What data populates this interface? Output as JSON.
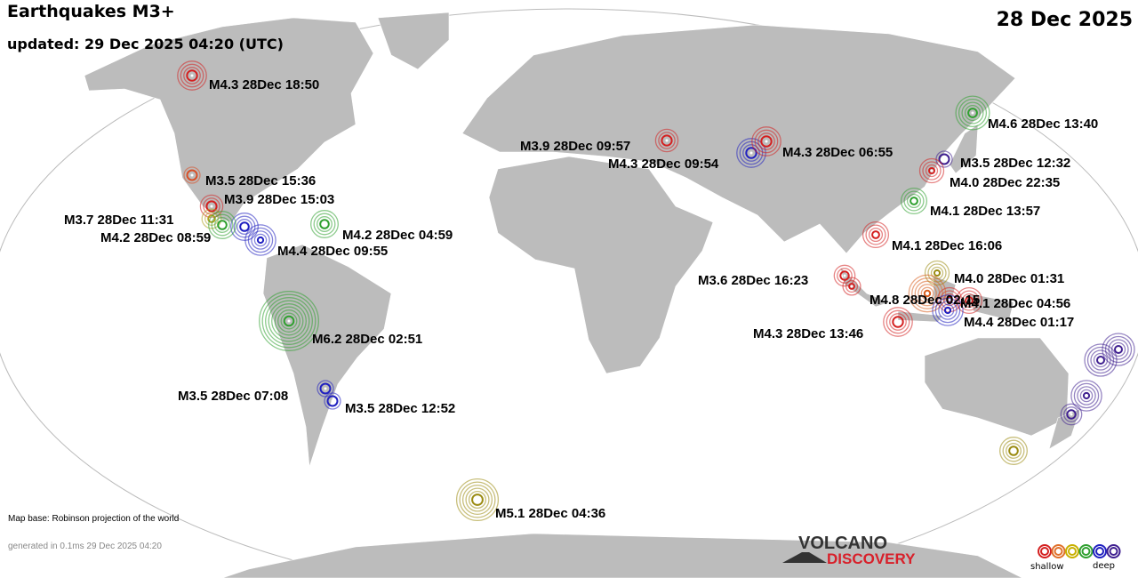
{
  "header": {
    "title": "Earthquakes M3+",
    "updated": "updated: 29 Dec 2025 04:20 (UTC)",
    "date": "28 Dec 2025"
  },
  "footer": {
    "map_base": "Map base: Robinson projection of the world",
    "generated": "generated in 0.1ms 29 Dec 2025 04:20",
    "logo_line1": "VOLCANO",
    "logo_line2": "DISCOVERY",
    "legend_shallow": "shallow",
    "legend_deep": "deep",
    "legend_colors": [
      "#d42020",
      "#e0702a",
      "#c8b000",
      "#30a030",
      "#2020c0",
      "#402090"
    ]
  },
  "colors": {
    "land": "#bcbcbc",
    "ocean": "#ffffff"
  },
  "quakes": [
    {
      "label": "M4.3 28Dec 18:50",
      "mag": 4.3,
      "color": "#d42020"
    },
    {
      "label": "M3.5 28Dec 15:36",
      "mag": 3.5,
      "color": "#d85028"
    },
    {
      "label": "M3.9 28Dec 15:03",
      "mag": 3.9,
      "color": "#d42020"
    },
    {
      "label": "M3.7 28Dec 11:31",
      "mag": 3.7,
      "color": "#b0a020"
    },
    {
      "label": "M4.2 28Dec 08:59",
      "mag": 4.2,
      "color": "#30a030"
    },
    {
      "label": "M4.4 28Dec 09:55",
      "mag": 4.4,
      "color": "#2020c0"
    },
    {
      "label": "M4.2 28Dec 04:59",
      "mag": 4.2,
      "color": "#30a030"
    },
    {
      "label": "M6.2 28Dec 02:51",
      "mag": 6.2,
      "color": "#30a030"
    },
    {
      "label": "M3.5 28Dec 07:08",
      "mag": 3.5,
      "color": "#2020c0"
    },
    {
      "label": "M3.5 28Dec 12:52",
      "mag": 3.5,
      "color": "#2020c0"
    },
    {
      "label": "M5.1 28Dec 04:36",
      "mag": 5.1,
      "color": "#9a8a10"
    },
    {
      "label": "M3.9 28Dec 09:57",
      "mag": 3.9,
      "color": "#d42020"
    },
    {
      "label": "M4.3 28Dec 09:54",
      "mag": 4.3,
      "color": "#2020c0"
    },
    {
      "label": "M4.3 28Dec 06:55",
      "mag": 4.3,
      "color": "#d42020"
    },
    {
      "label": "M4.6 28Dec 13:40",
      "mag": 4.6,
      "color": "#30a030"
    },
    {
      "label": "M3.5 28Dec 12:32",
      "mag": 3.5,
      "color": "#402090"
    },
    {
      "label": "M4.0 28Dec 22:35",
      "mag": 4.0,
      "color": "#d42020"
    },
    {
      "label": "M4.1 28Dec 13:57",
      "mag": 4.1,
      "color": "#30a030"
    },
    {
      "label": "M4.1 28Dec 16:06",
      "mag": 4.1,
      "color": "#d42020"
    },
    {
      "label": "M3.6 28Dec 16:23",
      "mag": 3.6,
      "color": "#d42020"
    },
    {
      "label": "M4.0 28Dec 01:31",
      "mag": 4.0,
      "color": "#9a8a10"
    },
    {
      "label": "M4.8 28Dec 02:15",
      "mag": 4.8,
      "color": "#d86020"
    },
    {
      "label": "M4.1 28Dec 04:56",
      "mag": 4.1,
      "color": "#d42020"
    },
    {
      "label": "M4.4 28Dec 01:17",
      "mag": 4.4,
      "color": "#2020c0"
    },
    {
      "label": "M4.3 28Dec 13:46",
      "mag": 4.3,
      "color": "#d42020"
    }
  ],
  "unlabeled_quakes": [
    {
      "mag": 4.2,
      "color": "#2020c0"
    },
    {
      "mag": 3.8,
      "color": "#d42020"
    },
    {
      "mag": 4.0,
      "color": "#d42020"
    },
    {
      "mag": 4.5,
      "color": "#402090"
    },
    {
      "mag": 4.5,
      "color": "#402090"
    },
    {
      "mag": 4.4,
      "color": "#402090"
    },
    {
      "mag": 3.8,
      "color": "#402090"
    },
    {
      "mag": 4.2,
      "color": "#9a8a10"
    }
  ]
}
